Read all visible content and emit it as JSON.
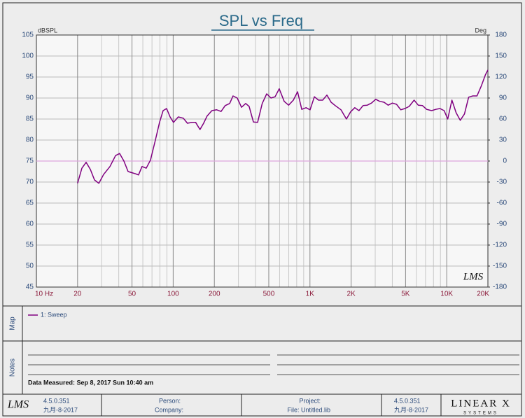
{
  "chart_data": {
    "type": "line",
    "title": "SPL vs Freq",
    "y_label": "dBSPL",
    "y2_label": "Deg",
    "log_x": true,
    "grid": true,
    "x": [
      20,
      21.5,
      23.1,
      24.8,
      26.6,
      28.6,
      31,
      34.5,
      37.9,
      40.6,
      43.6,
      46.8,
      52.6,
      55.8,
      59.2,
      63.5,
      68.2,
      74.1,
      79.5,
      84.4,
      89.5,
      94.9,
      100.6,
      109,
      118.6,
      127,
      138,
      146,
      157,
      167,
      177,
      192,
      208,
      224,
      240,
      259,
      274,
      294,
      316,
      339,
      359,
      386,
      414,
      448,
      483,
      519,
      556,
      596,
      648,
      698,
      756,
      812,
      871,
      936,
      1003,
      1077,
      1155,
      1240,
      1330,
      1427,
      1531,
      1686,
      1848,
      1981,
      2126,
      2281,
      2447,
      2626,
      2817,
      3023,
      3244,
      3480,
      3734,
      4007,
      4299,
      4613,
      4949,
      5311,
      5773,
      6194,
      6646,
      7131,
      7752,
      8317,
      8925,
      9577,
      10170,
      10910,
      11710,
      12560,
      13480,
      14460,
      15520,
      16650,
      17870,
      19170,
      20000
    ],
    "series": [
      {
        "name": "1: Sweep",
        "color": "#800080",
        "values": [
          69.7,
          73.3,
          74.7,
          73,
          70.5,
          69.7,
          71.8,
          73.7,
          76.3,
          76.8,
          75,
          72.5,
          72,
          71.7,
          73.7,
          73.3,
          75.2,
          80,
          84.2,
          87,
          87.5,
          85.5,
          84.2,
          85.5,
          85.2,
          84,
          84.2,
          84.2,
          82.5,
          84,
          85.7,
          87,
          87.2,
          86.8,
          88.2,
          88.7,
          90.5,
          90,
          87.8,
          88.7,
          88,
          84.3,
          84.2,
          88.7,
          91,
          90,
          90.3,
          92.2,
          89.2,
          88.3,
          89.5,
          91.5,
          87.3,
          87.7,
          87.2,
          90.3,
          89.5,
          89.5,
          90.7,
          89,
          88.2,
          87.2,
          85,
          86.7,
          87.7,
          87,
          88.2,
          88.3,
          88.8,
          89.7,
          89.2,
          89,
          88.3,
          88.8,
          88.5,
          87.2,
          87.5,
          88,
          89.5,
          88.3,
          88.2,
          87.3,
          87,
          87.3,
          87.5,
          87,
          85,
          89.5,
          86.5,
          84.7,
          86.2,
          90.2,
          90.5,
          90.5,
          92.8,
          95.5,
          96.7
        ]
      }
    ],
    "xlim": [
      10,
      20000
    ],
    "xticks": [
      {
        "value": 10,
        "label": "10 Hz"
      },
      20,
      50,
      100,
      200,
      500,
      {
        "value": 1000,
        "label": "1K"
      },
      {
        "value": 2000,
        "label": "2K"
      },
      {
        "value": 5000,
        "label": "5K"
      },
      {
        "value": 10000,
        "label": "10K"
      },
      {
        "value": 20000,
        "label": "20K"
      }
    ],
    "x_minor_ticks": [
      30,
      40,
      60,
      70,
      80,
      90,
      300,
      400,
      600,
      700,
      800,
      900,
      3000,
      4000,
      6000,
      7000,
      8000,
      9000
    ],
    "ylim": [
      45,
      105
    ],
    "yticks": [
      45,
      50,
      55,
      60,
      65,
      70,
      75,
      80,
      85,
      90,
      95,
      100,
      105
    ],
    "y2lim": [
      -180,
      180
    ],
    "y2ticks": [
      -180,
      -150,
      -120,
      -90,
      -60,
      -30,
      0,
      30,
      60,
      90,
      120,
      150,
      180
    ],
    "reference_line": {
      "axis": "y2",
      "value": 0,
      "color": "#dda6dd"
    }
  },
  "ui": {
    "plot_logo": "LMS",
    "map_label": "Map",
    "notes_label": "Notes",
    "notes_text": "Data Measured: Sep 8, 2017 Sun 10:40 am",
    "footer": {
      "logo": "LMS",
      "version": "4.5.0.351",
      "date": "九月-8-2017",
      "person": "Person:",
      "company": "Company:",
      "project": "Project:",
      "file": "File: Untitled.lib",
      "version2": "4.5.0.351",
      "date2": "九月-8-2017",
      "brand": "LINEAR X",
      "brand_sub": "SYSTEMS"
    }
  }
}
